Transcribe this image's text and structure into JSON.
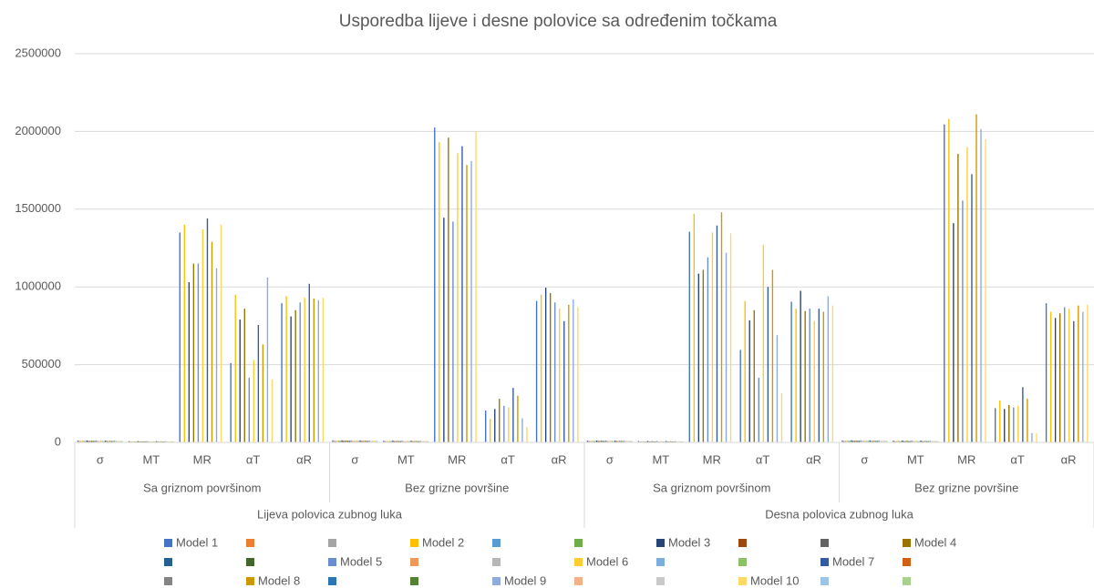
{
  "chart_data": {
    "type": "bar",
    "title": "Usporedba lijeve i desne polovice sa određenim točkama",
    "categories": [
      "σ",
      "MT",
      "MR",
      "αT",
      "αR",
      "σ",
      "MT",
      "MR",
      "αT",
      "αR",
      "σ",
      "MT",
      "MR",
      "αT",
      "αR",
      "σ",
      "MT",
      "MR",
      "αT",
      "αR"
    ],
    "category_groups": [
      "Sa griznom površinom",
      "Bez grizne površine",
      "Sa griznom površinom",
      "Bez grizne površine"
    ],
    "category_supergroups": [
      "Lijeva polovica zubnog luka",
      "Desna polovica zubnog luka"
    ],
    "ylim": [
      0,
      2500000
    ],
    "yticks": [
      0,
      500000,
      1000000,
      1500000,
      2000000,
      2500000
    ],
    "grid": true,
    "legend": "bottom",
    "series": [
      {
        "name": "Model 1",
        "color": "#4472c4",
        "values": [
          12000,
          8000,
          1350000,
          510000,
          895000,
          13000,
          11000,
          2025000,
          205000,
          910000,
          12000,
          9000,
          1355000,
          595000,
          905000,
          13000,
          12000,
          2045000,
          220000,
          895000
        ]
      },
      {
        "name": null,
        "color": "#ed7d31",
        "values": [
          9000,
          6000,
          0,
          0,
          0,
          10000,
          8000,
          0,
          0,
          0,
          9000,
          6000,
          0,
          0,
          0,
          10000,
          8000,
          0,
          0,
          0
        ]
      },
      {
        "name": null,
        "color": "#a5a5a5",
        "values": [
          9000,
          6000,
          0,
          0,
          0,
          10000,
          8000,
          0,
          0,
          0,
          9000,
          6000,
          0,
          0,
          0,
          10000,
          8000,
          0,
          0,
          0
        ]
      },
      {
        "name": "Model 2",
        "color": "#ffc000",
        "values": [
          11000,
          7000,
          1400000,
          950000,
          940000,
          12000,
          10000,
          1930000,
          150000,
          950000,
          11000,
          8000,
          1470000,
          910000,
          860000,
          12000,
          11000,
          2080000,
          270000,
          840000
        ]
      },
      {
        "name": null,
        "color": "#5b9bd5",
        "values": [
          9000,
          6000,
          0,
          0,
          0,
          10000,
          8000,
          0,
          0,
          0,
          9000,
          6000,
          0,
          0,
          0,
          10000,
          8000,
          0,
          0,
          0
        ]
      },
      {
        "name": null,
        "color": "#70ad47",
        "values": [
          9000,
          6000,
          0,
          0,
          0,
          10000,
          8000,
          0,
          0,
          0,
          9000,
          6000,
          0,
          0,
          0,
          10000,
          8000,
          0,
          0,
          0
        ]
      },
      {
        "name": "Model 3",
        "color": "#264478",
        "values": [
          12000,
          8000,
          1030000,
          790000,
          810000,
          13000,
          11000,
          1445000,
          215000,
          995000,
          12000,
          9000,
          1085000,
          785000,
          975000,
          13000,
          12000,
          1410000,
          215000,
          800000
        ]
      },
      {
        "name": null,
        "color": "#9e480e",
        "values": [
          9000,
          6000,
          0,
          0,
          0,
          10000,
          8000,
          0,
          0,
          0,
          9000,
          6000,
          0,
          0,
          0,
          10000,
          8000,
          0,
          0,
          0
        ]
      },
      {
        "name": null,
        "color": "#636363",
        "values": [
          9000,
          6000,
          0,
          0,
          0,
          10000,
          8000,
          0,
          0,
          0,
          9000,
          6000,
          0,
          0,
          0,
          10000,
          8000,
          0,
          0,
          0
        ]
      },
      {
        "name": "Model 4",
        "color": "#997300",
        "values": [
          11000,
          7000,
          1150000,
          860000,
          850000,
          12000,
          10000,
          1960000,
          280000,
          960000,
          11000,
          8000,
          1110000,
          850000,
          845000,
          12000,
          11000,
          1855000,
          240000,
          830000
        ]
      },
      {
        "name": null,
        "color": "#255e91",
        "values": [
          9000,
          6000,
          0,
          0,
          0,
          10000,
          8000,
          0,
          0,
          0,
          9000,
          6000,
          0,
          0,
          0,
          10000,
          8000,
          0,
          0,
          0
        ]
      },
      {
        "name": null,
        "color": "#43682b",
        "values": [
          9000,
          6000,
          0,
          0,
          0,
          10000,
          8000,
          0,
          0,
          0,
          9000,
          6000,
          0,
          0,
          0,
          10000,
          8000,
          0,
          0,
          0
        ]
      },
      {
        "name": "Model 5",
        "color": "#698ed0",
        "values": [
          12000,
          8000,
          1150000,
          415000,
          900000,
          13000,
          11000,
          1420000,
          235000,
          900000,
          12000,
          9000,
          1190000,
          415000,
          860000,
          13000,
          12000,
          1555000,
          225000,
          870000
        ]
      },
      {
        "name": null,
        "color": "#f1975a",
        "values": [
          9000,
          6000,
          0,
          0,
          0,
          10000,
          8000,
          0,
          0,
          0,
          9000,
          6000,
          0,
          0,
          0,
          10000,
          8000,
          0,
          0,
          0
        ]
      },
      {
        "name": null,
        "color": "#b7b7b7",
        "values": [
          9000,
          6000,
          0,
          0,
          0,
          10000,
          8000,
          0,
          0,
          0,
          9000,
          6000,
          0,
          0,
          0,
          10000,
          8000,
          0,
          0,
          0
        ]
      },
      {
        "name": "Model 6",
        "color": "#ffcd33",
        "values": [
          11000,
          7000,
          1370000,
          530000,
          930000,
          12000,
          10000,
          1860000,
          225000,
          860000,
          11000,
          8000,
          1350000,
          1270000,
          780000,
          12000,
          11000,
          1900000,
          235000,
          860000
        ]
      },
      {
        "name": null,
        "color": "#7cafdd",
        "values": [
          9000,
          6000,
          0,
          0,
          0,
          10000,
          8000,
          0,
          0,
          0,
          9000,
          6000,
          0,
          0,
          0,
          10000,
          8000,
          0,
          0,
          0
        ]
      },
      {
        "name": null,
        "color": "#8cc168",
        "values": [
          9000,
          6000,
          0,
          0,
          0,
          10000,
          8000,
          0,
          0,
          0,
          9000,
          6000,
          0,
          0,
          0,
          10000,
          8000,
          0,
          0,
          0
        ]
      },
      {
        "name": "Model 7",
        "color": "#335aa1",
        "values": [
          12000,
          8000,
          1440000,
          755000,
          1020000,
          13000,
          11000,
          1905000,
          350000,
          780000,
          12000,
          9000,
          1395000,
          1000000,
          860000,
          13000,
          12000,
          1725000,
          355000,
          780000
        ]
      },
      {
        "name": null,
        "color": "#d26012",
        "values": [
          9000,
          6000,
          0,
          0,
          0,
          10000,
          8000,
          0,
          0,
          0,
          9000,
          6000,
          0,
          0,
          0,
          10000,
          8000,
          0,
          0,
          0
        ]
      },
      {
        "name": null,
        "color": "#848484",
        "values": [
          9000,
          6000,
          0,
          0,
          0,
          10000,
          8000,
          0,
          0,
          0,
          9000,
          6000,
          0,
          0,
          0,
          10000,
          8000,
          0,
          0,
          0
        ]
      },
      {
        "name": "Model 8",
        "color": "#cc9a00",
        "values": [
          11000,
          7000,
          1290000,
          630000,
          925000,
          12000,
          10000,
          1785000,
          300000,
          885000,
          11000,
          8000,
          1480000,
          1110000,
          840000,
          12000,
          11000,
          2110000,
          280000,
          880000
        ]
      },
      {
        "name": null,
        "color": "#2e75b6",
        "values": [
          9000,
          6000,
          0,
          0,
          0,
          10000,
          8000,
          0,
          0,
          0,
          9000,
          6000,
          0,
          0,
          0,
          10000,
          8000,
          0,
          0,
          0
        ]
      },
      {
        "name": null,
        "color": "#548235",
        "values": [
          9000,
          6000,
          0,
          0,
          0,
          10000,
          8000,
          0,
          0,
          0,
          9000,
          6000,
          0,
          0,
          0,
          10000,
          8000,
          0,
          0,
          0
        ]
      },
      {
        "name": "Model 9",
        "color": "#8faadc",
        "values": [
          12000,
          8000,
          1120000,
          1060000,
          915000,
          13000,
          11000,
          1810000,
          155000,
          920000,
          12000,
          9000,
          1220000,
          690000,
          940000,
          13000,
          12000,
          2015000,
          60000,
          840000
        ]
      },
      {
        "name": null,
        "color": "#f4b183",
        "values": [
          9000,
          6000,
          0,
          0,
          0,
          10000,
          8000,
          0,
          0,
          0,
          9000,
          6000,
          0,
          0,
          0,
          10000,
          8000,
          0,
          0,
          0
        ]
      },
      {
        "name": null,
        "color": "#c9c9c9",
        "values": [
          9000,
          6000,
          0,
          0,
          0,
          10000,
          8000,
          0,
          0,
          0,
          9000,
          6000,
          0,
          0,
          0,
          10000,
          8000,
          0,
          0,
          0
        ]
      },
      {
        "name": "Model 10",
        "color": "#ffd966",
        "values": [
          11000,
          7000,
          1400000,
          405000,
          930000,
          12000,
          10000,
          2000000,
          100000,
          870000,
          11000,
          8000,
          1345000,
          315000,
          880000,
          12000,
          11000,
          1950000,
          60000,
          885000
        ]
      },
      {
        "name": null,
        "color": "#9dc3e6",
        "values": [
          9000,
          6000,
          0,
          0,
          0,
          10000,
          8000,
          0,
          0,
          0,
          9000,
          6000,
          0,
          0,
          0,
          10000,
          8000,
          0,
          0,
          0
        ]
      },
      {
        "name": null,
        "color": "#a9d18e",
        "values": [
          9000,
          6000,
          0,
          0,
          0,
          10000,
          8000,
          0,
          0,
          0,
          9000,
          6000,
          0,
          0,
          0,
          10000,
          8000,
          0,
          0,
          0
        ]
      }
    ]
  }
}
